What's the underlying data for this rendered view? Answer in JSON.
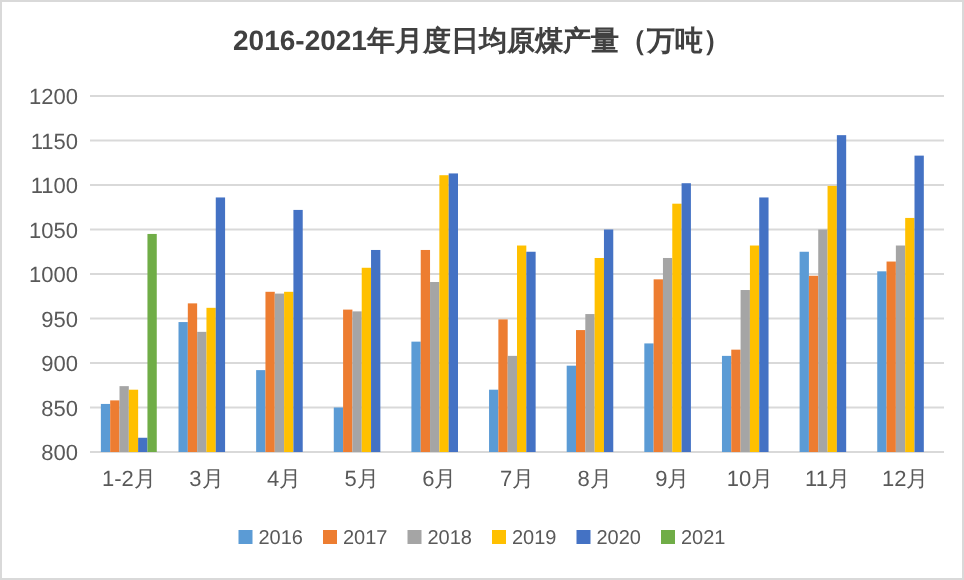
{
  "chart_data": {
    "type": "bar",
    "title": "2016-2021年月度日均原煤产量（万吨）",
    "categories": [
      "1-2月",
      "3月",
      "4月",
      "5月",
      "6月",
      "7月",
      "8月",
      "9月",
      "10月",
      "11月",
      "12月"
    ],
    "series": [
      {
        "name": "2016",
        "color": "#5b9bd5",
        "values": [
          854,
          946,
          892,
          850,
          924,
          870,
          897,
          922,
          908,
          1025,
          1003
        ]
      },
      {
        "name": "2017",
        "color": "#ed7d31",
        "values": [
          858,
          967,
          980,
          960,
          1027,
          949,
          937,
          994,
          915,
          998,
          1014
        ]
      },
      {
        "name": "2018",
        "color": "#a5a5a5",
        "values": [
          874,
          935,
          978,
          958,
          991,
          908,
          955,
          1018,
          982,
          1050,
          1032
        ]
      },
      {
        "name": "2019",
        "color": "#ffc000",
        "values": [
          870,
          962,
          980,
          1007,
          1111,
          1032,
          1018,
          1079,
          1032,
          1099,
          1063
        ]
      },
      {
        "name": "2020",
        "color": "#4472c4",
        "values": [
          816,
          1086,
          1072,
          1027,
          1113,
          1025,
          1050,
          1102,
          1086,
          1156,
          1133
        ]
      },
      {
        "name": "2021",
        "color": "#70ad47",
        "values": [
          1045,
          null,
          null,
          null,
          null,
          null,
          null,
          null,
          null,
          null,
          null
        ]
      }
    ],
    "ylim": [
      800,
      1200
    ],
    "yticks": [
      800,
      850,
      900,
      950,
      1000,
      1050,
      1100,
      1150,
      1200
    ],
    "grid": "y",
    "legend": "bottom"
  }
}
